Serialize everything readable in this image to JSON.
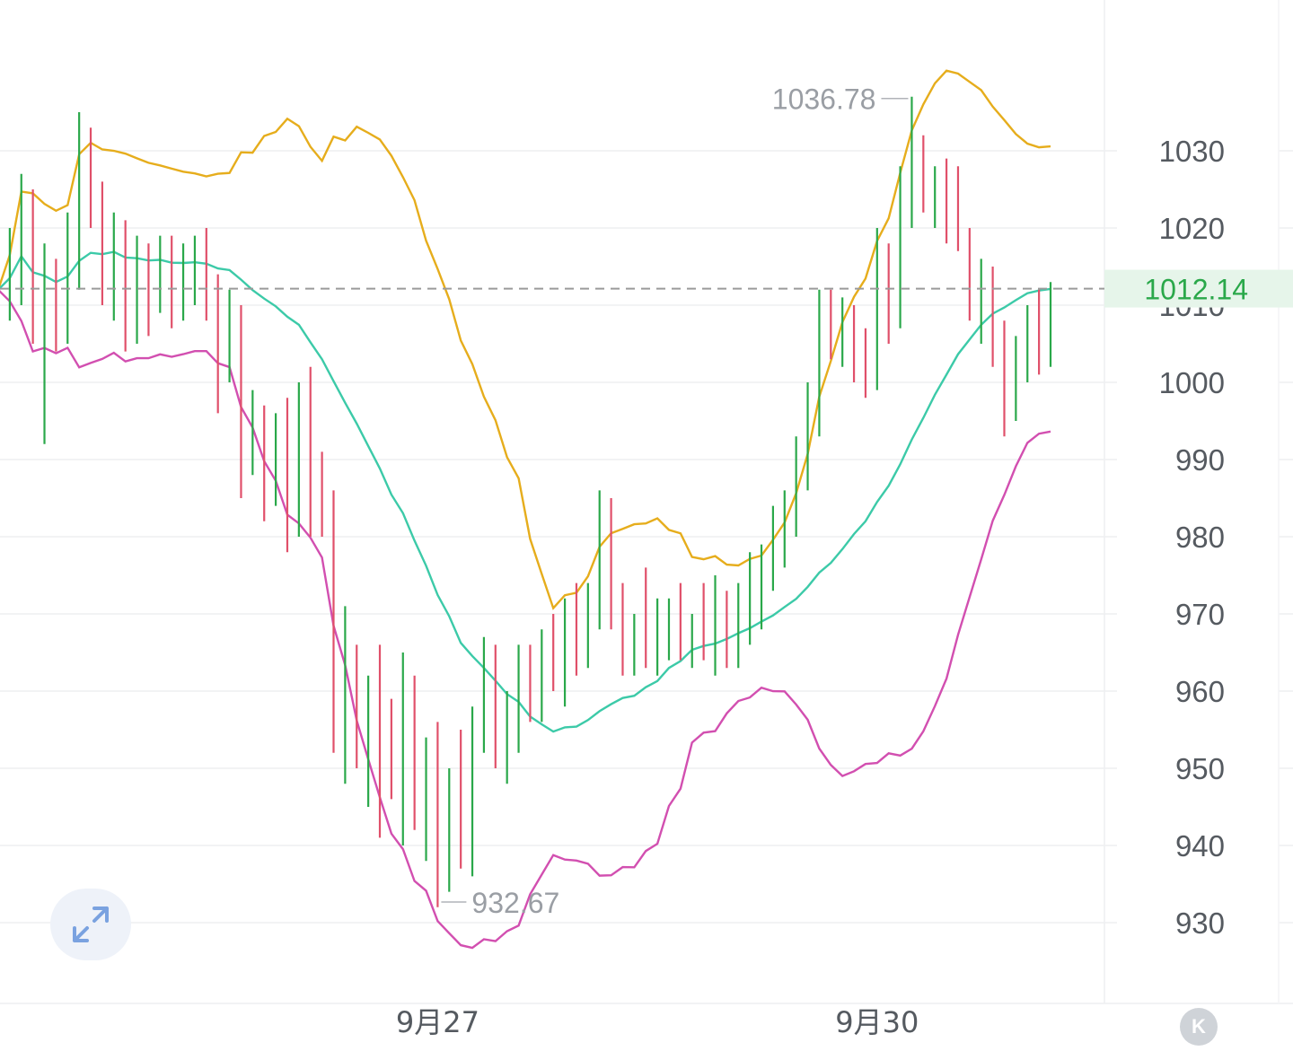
{
  "chart_data": {
    "type": "candlestick",
    "indicators": [
      "Bollinger Bands"
    ],
    "y_axis": {
      "ticks": [
        "1030",
        "1020",
        "1010",
        "1000",
        "990",
        "980",
        "970",
        "960",
        "950",
        "940",
        "930"
      ],
      "ylim": [
        920,
        1045
      ]
    },
    "x_axis": {
      "ticks": [
        "9月27",
        "9月30"
      ]
    },
    "current_price": "1012.14",
    "annotations": {
      "high": "1036.78",
      "low": "932.67"
    },
    "colors": {
      "up": "#2aa84a",
      "down": "#e0506a",
      "upper_band": "#e6ad1c",
      "middle_band": "#3ccaa8",
      "lower_band": "#d24fb0",
      "price_tag_bg": "#e6f5ea",
      "price_line": "#9a9a9a"
    },
    "candles": [
      [
        1010,
        1015,
        1005,
        1012
      ],
      [
        1012,
        1020,
        1008,
        1015
      ],
      [
        1015,
        1027,
        1010,
        1022
      ],
      [
        1022,
        1025,
        1005,
        1008
      ],
      [
        1008,
        1018,
        992,
        1012
      ],
      [
        1012,
        1016,
        1004,
        1009
      ],
      [
        1009,
        1022,
        1005,
        1018
      ],
      [
        1018,
        1035,
        1012,
        1030
      ],
      [
        1030,
        1033,
        1020,
        1025
      ],
      [
        1025,
        1026,
        1010,
        1015
      ],
      [
        1015,
        1022,
        1008,
        1020
      ],
      [
        1020,
        1021,
        1004,
        1008
      ],
      [
        1008,
        1019,
        1005,
        1015
      ],
      [
        1015,
        1018,
        1006,
        1012
      ],
      [
        1012,
        1019,
        1009,
        1017
      ],
      [
        1017,
        1019,
        1007,
        1010
      ],
      [
        1010,
        1018,
        1008,
        1015
      ],
      [
        1015,
        1019,
        1010,
        1017
      ],
      [
        1017,
        1020,
        1008,
        1012
      ],
      [
        1012,
        1014,
        996,
        1003
      ],
      [
        1003,
        1012,
        1000,
        1008
      ],
      [
        1008,
        1010,
        985,
        990
      ],
      [
        990,
        999,
        988,
        995
      ],
      [
        995,
        997,
        982,
        986
      ],
      [
        986,
        996,
        984,
        992
      ],
      [
        992,
        998,
        978,
        982
      ],
      [
        982,
        1000,
        980,
        997
      ],
      [
        997,
        1002,
        980,
        985
      ],
      [
        985,
        991,
        980,
        981
      ],
      [
        981,
        986,
        952,
        958
      ],
      [
        958,
        971,
        948,
        964
      ],
      [
        964,
        966,
        950,
        954
      ],
      [
        954,
        962,
        945,
        957
      ],
      [
        957,
        966,
        941,
        954
      ],
      [
        954,
        959,
        946,
        949
      ],
      [
        949,
        965,
        940,
        962
      ],
      [
        962,
        962,
        942,
        944
      ],
      [
        944,
        954,
        938,
        952
      ],
      [
        952,
        956,
        932,
        936
      ],
      [
        936,
        950,
        934,
        948
      ],
      [
        948,
        955,
        937,
        939
      ],
      [
        939,
        958,
        936,
        956
      ],
      [
        956,
        967,
        952,
        964
      ],
      [
        964,
        966,
        950,
        953
      ],
      [
        953,
        960,
        948,
        957
      ],
      [
        957,
        966,
        952,
        962
      ],
      [
        962,
        966,
        956,
        959
      ],
      [
        959,
        968,
        956,
        965
      ],
      [
        965,
        970,
        960,
        962
      ],
      [
        962,
        972,
        958,
        969
      ],
      [
        969,
        974,
        962,
        966
      ],
      [
        966,
        974,
        963,
        971
      ],
      [
        971,
        986,
        968,
        980
      ],
      [
        980,
        985,
        968,
        972
      ],
      [
        972,
        974,
        962,
        965
      ],
      [
        965,
        970,
        962,
        968
      ],
      [
        968,
        976,
        963,
        966
      ],
      [
        966,
        972,
        962,
        968
      ],
      [
        968,
        972,
        964,
        970
      ],
      [
        970,
        974,
        964,
        966
      ],
      [
        966,
        970,
        963,
        968
      ],
      [
        968,
        974,
        964,
        966
      ],
      [
        966,
        975,
        962,
        970
      ],
      [
        970,
        973,
        963,
        965
      ],
      [
        965,
        974,
        963,
        972
      ],
      [
        972,
        978,
        966,
        975
      ],
      [
        975,
        979,
        968,
        976
      ],
      [
        976,
        984,
        973,
        981
      ],
      [
        981,
        986,
        976,
        984
      ],
      [
        984,
        993,
        980,
        990
      ],
      [
        990,
        1000,
        986,
        997
      ],
      [
        997,
        1012,
        993,
        1008
      ],
      [
        1008,
        1012,
        1003,
        1005
      ],
      [
        1005,
        1011,
        1002,
        1008
      ],
      [
        1008,
        1010,
        1000,
        1004
      ],
      [
        1004,
        1007,
        998,
        1001
      ],
      [
        1001,
        1020,
        999,
        1016
      ],
      [
        1016,
        1018,
        1005,
        1010
      ],
      [
        1010,
        1028,
        1007,
        1026
      ],
      [
        1026,
        1037,
        1020,
        1030
      ],
      [
        1030,
        1032,
        1022,
        1024
      ],
      [
        1024,
        1028,
        1020,
        1026
      ],
      [
        1026,
        1029,
        1018,
        1022
      ],
      [
        1022,
        1028,
        1017,
        1018
      ],
      [
        1018,
        1020,
        1008,
        1010
      ],
      [
        1010,
        1016,
        1005,
        1013
      ],
      [
        1013,
        1015,
        1002,
        1005
      ],
      [
        1005,
        1008,
        993,
        997
      ],
      [
        997,
        1006,
        995,
        1003
      ],
      [
        1003,
        1010,
        1000,
        1008
      ],
      [
        1008,
        1012,
        1001,
        1004
      ],
      [
        1004,
        1013,
        1002,
        1012
      ]
    ]
  },
  "ui": {
    "expand_icon": "expand-arrows-icon",
    "k_label": "K"
  }
}
